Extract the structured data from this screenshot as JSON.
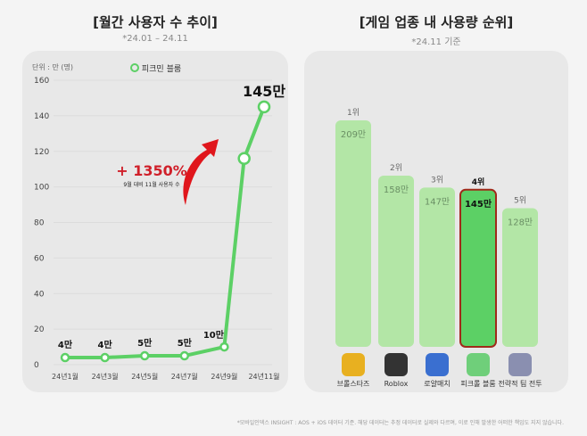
{
  "chart_data": [
    {
      "type": "line",
      "title": "[월간 사용자 수 추이]",
      "subtitle": "*24.01 – 24.11",
      "unit_label": "단위 : 만 (명)",
      "legend": "피크민 블룸",
      "legend_position": "top-center",
      "ylim": [
        0,
        160
      ],
      "yticks": [
        0,
        20,
        40,
        60,
        80,
        100,
        120,
        140,
        160
      ],
      "xticks": [
        {
          "m": 1,
          "label": "24년1월"
        },
        {
          "m": 3,
          "label": "24년3월"
        },
        {
          "m": 5,
          "label": "24년5월"
        },
        {
          "m": 7,
          "label": "24년7월"
        },
        {
          "m": 9,
          "label": "24년9월"
        },
        {
          "m": 11,
          "label": "24년11월"
        }
      ],
      "series": [
        {
          "name": "피크민 블룸",
          "color": "#5cd065",
          "points": [
            {
              "m": 1,
              "v": 4,
              "label": "4만"
            },
            {
              "m": 3,
              "v": 4,
              "label": "4만"
            },
            {
              "m": 5,
              "v": 5,
              "label": "5만"
            },
            {
              "m": 7,
              "v": 5,
              "label": "5만"
            },
            {
              "m": 9,
              "v": 10,
              "label": "10만"
            },
            {
              "m": 10,
              "v": 116,
              "label": ""
            },
            {
              "m": 11,
              "v": 145,
              "label": "145만"
            }
          ]
        }
      ],
      "annotation": {
        "text": "+ 1350%",
        "subtext": "9월 대비 11월 사용자 수",
        "color": "#d0202a"
      },
      "grid": true
    },
    {
      "type": "bar",
      "title": "[게임 업종 내 사용량 순위]",
      "subtitle": "*24.11 기준",
      "categories": [
        "브롤스타즈",
        "Roblox",
        "로얄매치",
        "피크롤 블룸",
        "전략적 팀 전투"
      ],
      "ranks": [
        "1위",
        "2위",
        "3위",
        "4위",
        "5위"
      ],
      "values": [
        209,
        158,
        147,
        145,
        128
      ],
      "value_labels": [
        "209만",
        "158만",
        "147만",
        "145만",
        "128만"
      ],
      "highlight_index": 3,
      "colors": {
        "bar": "#b3e6a6",
        "highlight": "#5cd065",
        "highlight_border": "#a02a1a"
      }
    }
  ],
  "footer": "*모바일인덱스 INSIGHT : AOS + iOS 데이터 기준. 해당 데이터는 추정 데이터로 실제와 다르며, 이로 인해 발생한 어떠한 책임도 지지 않습니다."
}
